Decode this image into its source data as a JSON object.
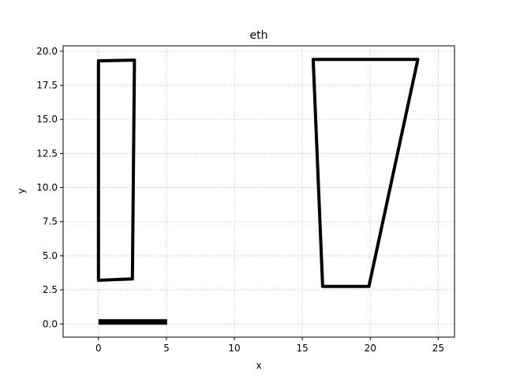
{
  "chart_data": {
    "type": "line",
    "title": "eth",
    "xlabel": "x",
    "ylabel": "y",
    "xlim": [
      -2.6,
      26.2
    ],
    "ylim": [
      -0.97,
      20.4
    ],
    "xticks": [
      0,
      5,
      10,
      15,
      20,
      25
    ],
    "xtick_labels": [
      "0",
      "5",
      "10",
      "15",
      "20",
      "25"
    ],
    "yticks": [
      0.0,
      2.5,
      5.0,
      7.5,
      10.0,
      12.5,
      15.0,
      17.5,
      20.0
    ],
    "ytick_labels": [
      "0.0",
      "2.5",
      "5.0",
      "7.5",
      "10.0",
      "12.5",
      "15.0",
      "17.5",
      "20.0"
    ],
    "grid": true,
    "series_color": "#000000",
    "series": [
      {
        "closed": true,
        "points": [
          [
            0.0,
            3.2
          ],
          [
            2.5,
            3.3
          ],
          [
            2.65,
            19.35
          ],
          [
            0.0,
            19.3
          ]
        ]
      },
      {
        "closed": true,
        "points": [
          [
            16.5,
            2.75
          ],
          [
            19.9,
            2.75
          ],
          [
            23.5,
            19.4
          ],
          [
            15.8,
            19.4
          ]
        ]
      },
      {
        "closed": false,
        "points": [
          [
            0.0,
            0.15
          ],
          [
            5.05,
            0.15
          ]
        ]
      }
    ]
  }
}
